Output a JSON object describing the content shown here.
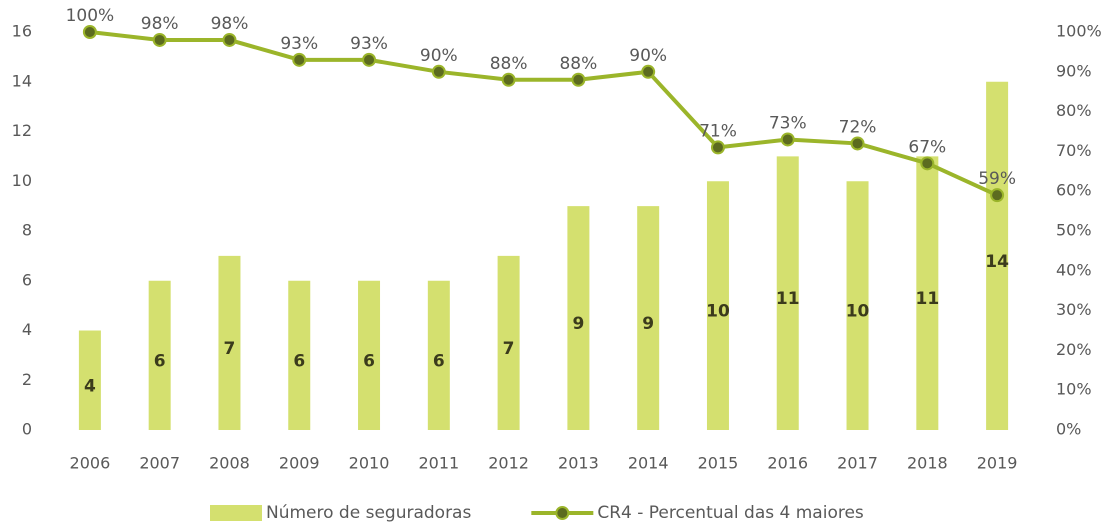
{
  "chart_data": {
    "type": "combo",
    "categories": [
      "2006",
      "2007",
      "2008",
      "2009",
      "2010",
      "2011",
      "2012",
      "2013",
      "2014",
      "2015",
      "2016",
      "2017",
      "2018",
      "2019"
    ],
    "series": [
      {
        "name": "Número de seguradoras",
        "type": "bar",
        "color": "#d4e06f",
        "values": [
          4,
          6,
          7,
          6,
          6,
          6,
          7,
          9,
          9,
          10,
          11,
          10,
          11,
          14
        ]
      },
      {
        "name": "CR4 - Percentual das 4 maiores",
        "type": "line",
        "axis": "y2",
        "color": "#9bb52a",
        "marker_color": "#5c6b1f",
        "values": [
          100,
          98,
          98,
          93,
          93,
          90,
          88,
          88,
          90,
          71,
          73,
          72,
          67,
          59
        ],
        "value_labels": [
          "100%",
          "98%",
          "98%",
          "93%",
          "93%",
          "90%",
          "88%",
          "88%",
          "90%",
          "71%",
          "73%",
          "72%",
          "67%",
          "59%"
        ]
      }
    ],
    "ylim": [
      0,
      16
    ],
    "yticks": [
      0,
      2,
      4,
      6,
      8,
      10,
      12,
      14,
      16
    ],
    "y2lim": [
      0,
      100
    ],
    "y2ticks": [
      {
        "value": 0,
        "label": "0%"
      },
      {
        "value": 10,
        "label": "10%"
      },
      {
        "value": 20,
        "label": "20%"
      },
      {
        "value": 30,
        "label": "30%"
      },
      {
        "value": 40,
        "label": "40%"
      },
      {
        "value": 50,
        "label": "50%"
      },
      {
        "value": 60,
        "label": "60%"
      },
      {
        "value": 70,
        "label": "70%"
      },
      {
        "value": 80,
        "label": "80%"
      },
      {
        "value": 90,
        "label": "90%"
      },
      {
        "value": 100,
        "label": "100%"
      }
    ],
    "grid": false,
    "legend": "bottom"
  }
}
